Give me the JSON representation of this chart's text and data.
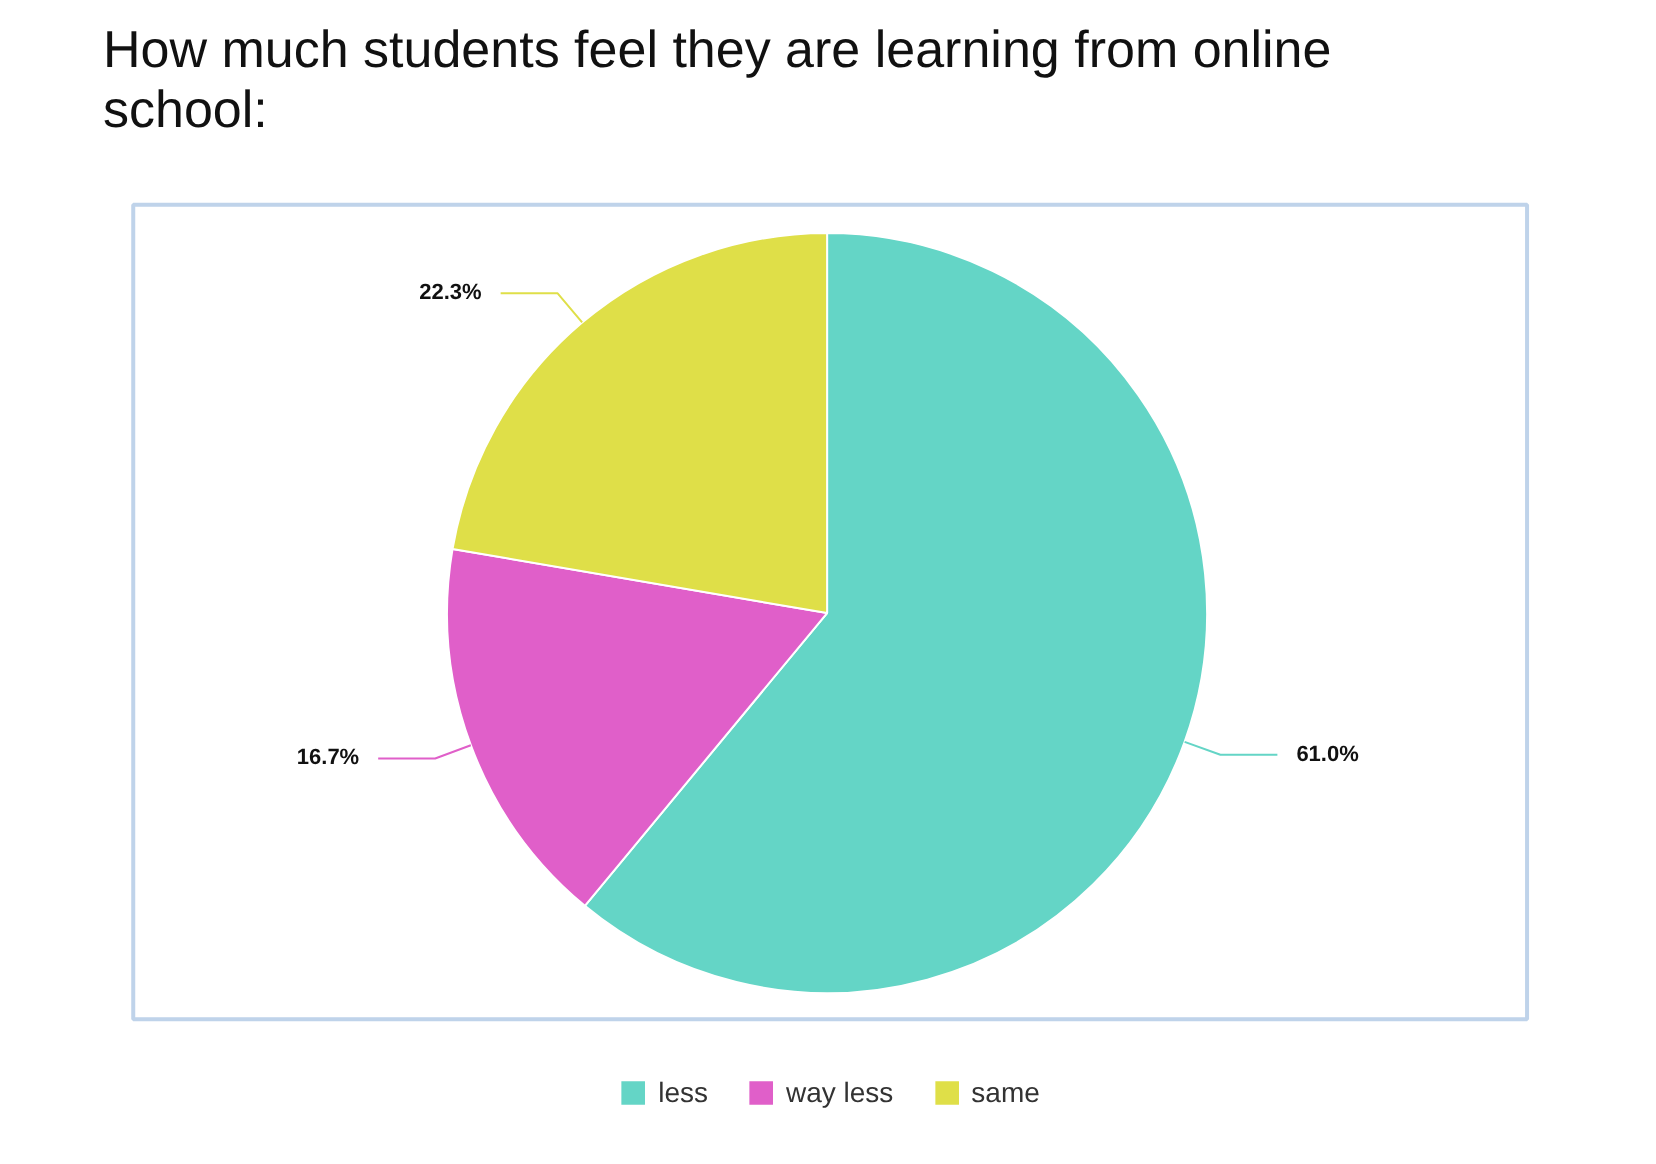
{
  "chart_data": {
    "type": "pie",
    "title": "How much students feel they are learning from online school:",
    "categories": [
      "less",
      "way less",
      "same"
    ],
    "values": [
      61.0,
      16.7,
      22.3
    ],
    "colors": [
      "#64d5c6",
      "#e05fc9",
      "#dfdf48"
    ],
    "value_labels": [
      "61.0%",
      "16.7%",
      "22.3%"
    ],
    "legend": "bottom"
  }
}
